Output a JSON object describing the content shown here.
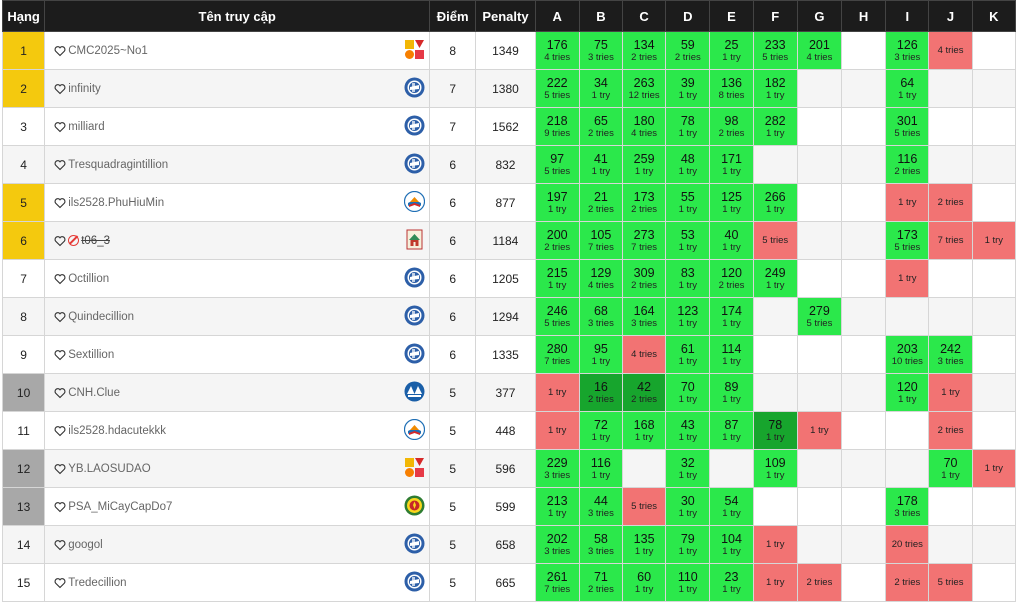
{
  "headers": {
    "rank": "Hạng",
    "user": "Tên truy cập",
    "points": "Điểm",
    "penalty": "Penalty",
    "problems": [
      "A",
      "B",
      "C",
      "D",
      "E",
      "F",
      "G",
      "H",
      "I",
      "J",
      "K"
    ]
  },
  "rows": [
    {
      "rank": "1",
      "rank_style": "gold",
      "name": "CMC2025~No1",
      "logo": "mosaic",
      "points": "8",
      "penalty": "1349",
      "cells": [
        {
          "t": "ac",
          "v": "176",
          "n": "4 tries"
        },
        {
          "t": "ac",
          "v": "75",
          "n": "3 tries"
        },
        {
          "t": "ac",
          "v": "134",
          "n": "2 tries"
        },
        {
          "t": "ac",
          "v": "59",
          "n": "2 tries"
        },
        {
          "t": "ac",
          "v": "25",
          "n": "1 try"
        },
        {
          "t": "ac",
          "v": "233",
          "n": "5 tries"
        },
        {
          "t": "ac",
          "v": "201",
          "n": "4 tries"
        },
        {
          "t": "e"
        },
        {
          "t": "ac",
          "v": "126",
          "n": "3 tries"
        },
        {
          "t": "wa",
          "n": "4 tries"
        },
        {
          "t": "e"
        }
      ]
    },
    {
      "rank": "2",
      "rank_style": "gold",
      "name": "infinity",
      "logo": "globe",
      "points": "7",
      "penalty": "1380",
      "cells": [
        {
          "t": "ac",
          "v": "222",
          "n": "5 tries"
        },
        {
          "t": "ac",
          "v": "34",
          "n": "1 try"
        },
        {
          "t": "ac",
          "v": "263",
          "n": "12 tries"
        },
        {
          "t": "ac",
          "v": "39",
          "n": "1 try"
        },
        {
          "t": "ac",
          "v": "136",
          "n": "8 tries"
        },
        {
          "t": "ac",
          "v": "182",
          "n": "1 try"
        },
        {
          "t": "e"
        },
        {
          "t": "e"
        },
        {
          "t": "ac",
          "v": "64",
          "n": "1 try"
        },
        {
          "t": "e"
        },
        {
          "t": "e"
        }
      ]
    },
    {
      "rank": "3",
      "rank_style": "",
      "name": "milliard",
      "logo": "globe",
      "points": "7",
      "penalty": "1562",
      "cells": [
        {
          "t": "ac",
          "v": "218",
          "n": "9 tries"
        },
        {
          "t": "ac",
          "v": "65",
          "n": "2 tries"
        },
        {
          "t": "ac",
          "v": "180",
          "n": "4 tries"
        },
        {
          "t": "ac",
          "v": "78",
          "n": "1 try"
        },
        {
          "t": "ac",
          "v": "98",
          "n": "2 tries"
        },
        {
          "t": "ac",
          "v": "282",
          "n": "1 try"
        },
        {
          "t": "e"
        },
        {
          "t": "e"
        },
        {
          "t": "ac",
          "v": "301",
          "n": "5 tries"
        },
        {
          "t": "e"
        },
        {
          "t": "e"
        }
      ]
    },
    {
      "rank": "4",
      "rank_style": "",
      "name": "Tresquadragintillion",
      "logo": "globe",
      "points": "6",
      "penalty": "832",
      "cells": [
        {
          "t": "ac",
          "v": "97",
          "n": "5 tries"
        },
        {
          "t": "ac",
          "v": "41",
          "n": "1 try"
        },
        {
          "t": "ac",
          "v": "259",
          "n": "1 try"
        },
        {
          "t": "ac",
          "v": "48",
          "n": "1 try"
        },
        {
          "t": "ac",
          "v": "171",
          "n": "1 try"
        },
        {
          "t": "e"
        },
        {
          "t": "e"
        },
        {
          "t": "e"
        },
        {
          "t": "ac",
          "v": "116",
          "n": "2 tries"
        },
        {
          "t": "e"
        },
        {
          "t": "e"
        }
      ]
    },
    {
      "rank": "5",
      "rank_style": "gold",
      "name": "ils2528.PhuHiuMin",
      "logo": "book",
      "points": "6",
      "penalty": "877",
      "cells": [
        {
          "t": "ac",
          "v": "197",
          "n": "1 try"
        },
        {
          "t": "ac",
          "v": "21",
          "n": "2 tries"
        },
        {
          "t": "ac",
          "v": "173",
          "n": "2 tries"
        },
        {
          "t": "ac",
          "v": "55",
          "n": "1 try"
        },
        {
          "t": "ac",
          "v": "125",
          "n": "1 try"
        },
        {
          "t": "ac",
          "v": "266",
          "n": "1 try"
        },
        {
          "t": "e"
        },
        {
          "t": "e"
        },
        {
          "t": "wa",
          "n": "1 try"
        },
        {
          "t": "wa",
          "n": "2 tries"
        },
        {
          "t": "e"
        }
      ]
    },
    {
      "rank": "6",
      "rank_style": "gold",
      "name": "t06_3",
      "banned": true,
      "logo": "house",
      "points": "6",
      "penalty": "1184",
      "cells": [
        {
          "t": "ac",
          "v": "200",
          "n": "2 tries"
        },
        {
          "t": "ac",
          "v": "105",
          "n": "7 tries"
        },
        {
          "t": "ac",
          "v": "273",
          "n": "7 tries"
        },
        {
          "t": "ac",
          "v": "53",
          "n": "1 try"
        },
        {
          "t": "ac",
          "v": "40",
          "n": "1 try"
        },
        {
          "t": "wa",
          "n": "5 tries"
        },
        {
          "t": "e"
        },
        {
          "t": "e"
        },
        {
          "t": "ac",
          "v": "173",
          "n": "5 tries"
        },
        {
          "t": "wa",
          "n": "7 tries"
        },
        {
          "t": "wa",
          "n": "1 try"
        }
      ]
    },
    {
      "rank": "7",
      "rank_style": "",
      "name": "Octillion",
      "logo": "globe",
      "points": "6",
      "penalty": "1205",
      "cells": [
        {
          "t": "ac",
          "v": "215",
          "n": "1 try"
        },
        {
          "t": "ac",
          "v": "129",
          "n": "4 tries"
        },
        {
          "t": "ac",
          "v": "309",
          "n": "2 tries"
        },
        {
          "t": "ac",
          "v": "83",
          "n": "1 try"
        },
        {
          "t": "ac",
          "v": "120",
          "n": "2 tries"
        },
        {
          "t": "ac",
          "v": "249",
          "n": "1 try"
        },
        {
          "t": "e"
        },
        {
          "t": "e"
        },
        {
          "t": "wa",
          "n": "1 try"
        },
        {
          "t": "e"
        },
        {
          "t": "e"
        }
      ]
    },
    {
      "rank": "8",
      "rank_style": "",
      "name": "Quindecillion",
      "logo": "globe",
      "points": "6",
      "penalty": "1294",
      "cells": [
        {
          "t": "ac",
          "v": "246",
          "n": "5 tries"
        },
        {
          "t": "ac",
          "v": "68",
          "n": "3 tries"
        },
        {
          "t": "ac",
          "v": "164",
          "n": "3 tries"
        },
        {
          "t": "ac",
          "v": "123",
          "n": "1 try"
        },
        {
          "t": "ac",
          "v": "174",
          "n": "1 try"
        },
        {
          "t": "e"
        },
        {
          "t": "ac",
          "v": "279",
          "n": "5 tries"
        },
        {
          "t": "e"
        },
        {
          "t": "e"
        },
        {
          "t": "e"
        },
        {
          "t": "e"
        }
      ]
    },
    {
      "rank": "9",
      "rank_style": "",
      "name": "Sextillion",
      "logo": "globe",
      "points": "6",
      "penalty": "1335",
      "cells": [
        {
          "t": "ac",
          "v": "280",
          "n": "7 tries"
        },
        {
          "t": "ac",
          "v": "95",
          "n": "1 try"
        },
        {
          "t": "wa",
          "n": "4 tries"
        },
        {
          "t": "ac",
          "v": "61",
          "n": "1 try"
        },
        {
          "t": "ac",
          "v": "114",
          "n": "1 try"
        },
        {
          "t": "e"
        },
        {
          "t": "e"
        },
        {
          "t": "e"
        },
        {
          "t": "ac",
          "v": "203",
          "n": "10 tries"
        },
        {
          "t": "ac",
          "v": "242",
          "n": "3 tries"
        },
        {
          "t": "e"
        }
      ]
    },
    {
      "rank": "10",
      "rank_style": "gray",
      "name": "CNH.Clue",
      "logo": "aha",
      "points": "5",
      "penalty": "377",
      "cells": [
        {
          "t": "wa",
          "n": "1 try"
        },
        {
          "t": "first",
          "v": "16",
          "n": "2 tries"
        },
        {
          "t": "first",
          "v": "42",
          "n": "2 tries"
        },
        {
          "t": "ac",
          "v": "70",
          "n": "1 try"
        },
        {
          "t": "ac",
          "v": "89",
          "n": "1 try"
        },
        {
          "t": "e"
        },
        {
          "t": "e"
        },
        {
          "t": "e"
        },
        {
          "t": "ac",
          "v": "120",
          "n": "1 try"
        },
        {
          "t": "wa",
          "n": "1 try"
        },
        {
          "t": "e"
        }
      ]
    },
    {
      "rank": "11",
      "rank_style": "",
      "name": "ils2528.hdacutekkk",
      "logo": "book",
      "points": "5",
      "penalty": "448",
      "cells": [
        {
          "t": "wa",
          "n": "1 try"
        },
        {
          "t": "ac",
          "v": "72",
          "n": "1 try"
        },
        {
          "t": "ac",
          "v": "168",
          "n": "1 try"
        },
        {
          "t": "ac",
          "v": "43",
          "n": "1 try"
        },
        {
          "t": "ac",
          "v": "87",
          "n": "1 try"
        },
        {
          "t": "first",
          "v": "78",
          "n": "1 try"
        },
        {
          "t": "wa",
          "n": "1 try"
        },
        {
          "t": "e"
        },
        {
          "t": "e"
        },
        {
          "t": "wa",
          "n": "2 tries"
        },
        {
          "t": "e"
        }
      ]
    },
    {
      "rank": "12",
      "rank_style": "gray",
      "name": "YB.LAOSUDAO",
      "logo": "mosaic",
      "points": "5",
      "penalty": "596",
      "cells": [
        {
          "t": "ac",
          "v": "229",
          "n": "3 tries"
        },
        {
          "t": "ac",
          "v": "116",
          "n": "1 try"
        },
        {
          "t": "e"
        },
        {
          "t": "ac",
          "v": "32",
          "n": "1 try"
        },
        {
          "t": "e"
        },
        {
          "t": "ac",
          "v": "109",
          "n": "1 try"
        },
        {
          "t": "e"
        },
        {
          "t": "e"
        },
        {
          "t": "e"
        },
        {
          "t": "ac",
          "v": "70",
          "n": "1 try"
        },
        {
          "t": "wa",
          "n": "1 try"
        }
      ]
    },
    {
      "rank": "13",
      "rank_style": "gray",
      "name": "PSA_MiCayCapDo7",
      "logo": "seal",
      "points": "5",
      "penalty": "599",
      "cells": [
        {
          "t": "ac",
          "v": "213",
          "n": "1 try"
        },
        {
          "t": "ac",
          "v": "44",
          "n": "3 tries"
        },
        {
          "t": "wa",
          "n": "5 tries"
        },
        {
          "t": "ac",
          "v": "30",
          "n": "1 try"
        },
        {
          "t": "ac",
          "v": "54",
          "n": "1 try"
        },
        {
          "t": "e"
        },
        {
          "t": "e"
        },
        {
          "t": "e"
        },
        {
          "t": "ac",
          "v": "178",
          "n": "3 tries"
        },
        {
          "t": "e"
        },
        {
          "t": "e"
        }
      ]
    },
    {
      "rank": "14",
      "rank_style": "",
      "name": "googol",
      "logo": "globe",
      "points": "5",
      "penalty": "658",
      "cells": [
        {
          "t": "ac",
          "v": "202",
          "n": "3 tries"
        },
        {
          "t": "ac",
          "v": "58",
          "n": "3 tries"
        },
        {
          "t": "ac",
          "v": "135",
          "n": "1 try"
        },
        {
          "t": "ac",
          "v": "79",
          "n": "1 try"
        },
        {
          "t": "ac",
          "v": "104",
          "n": "1 try"
        },
        {
          "t": "wa",
          "n": "1 try"
        },
        {
          "t": "e"
        },
        {
          "t": "e"
        },
        {
          "t": "wa",
          "n": "20 tries"
        },
        {
          "t": "e"
        },
        {
          "t": "e"
        }
      ]
    },
    {
      "rank": "15",
      "rank_style": "",
      "name": "Tredecillion",
      "logo": "globe",
      "points": "5",
      "penalty": "665",
      "cells": [
        {
          "t": "ac",
          "v": "261",
          "n": "7 tries"
        },
        {
          "t": "ac",
          "v": "71",
          "n": "2 tries"
        },
        {
          "t": "ac",
          "v": "60",
          "n": "1 try"
        },
        {
          "t": "ac",
          "v": "110",
          "n": "1 try"
        },
        {
          "t": "ac",
          "v": "23",
          "n": "1 try"
        },
        {
          "t": "wa",
          "n": "1 try"
        },
        {
          "t": "wa",
          "n": "2 tries"
        },
        {
          "t": "e"
        },
        {
          "t": "wa",
          "n": "2 tries"
        },
        {
          "t": "wa",
          "n": "5 tries"
        },
        {
          "t": "e"
        }
      ]
    }
  ],
  "colors": {
    "header_bg": "#1c1c1c",
    "gold_rank": "#f4c90e",
    "gray_rank": "#a8a8a8",
    "accepted": "#2be84b",
    "first_solve": "#17a52d",
    "wrong": "#f27373"
  },
  "icons": {
    "heart": "heart-outline-icon",
    "logos": [
      "mosaic-logo",
      "globe-logo",
      "book-logo",
      "house-logo",
      "aha-logo",
      "seal-logo"
    ]
  }
}
